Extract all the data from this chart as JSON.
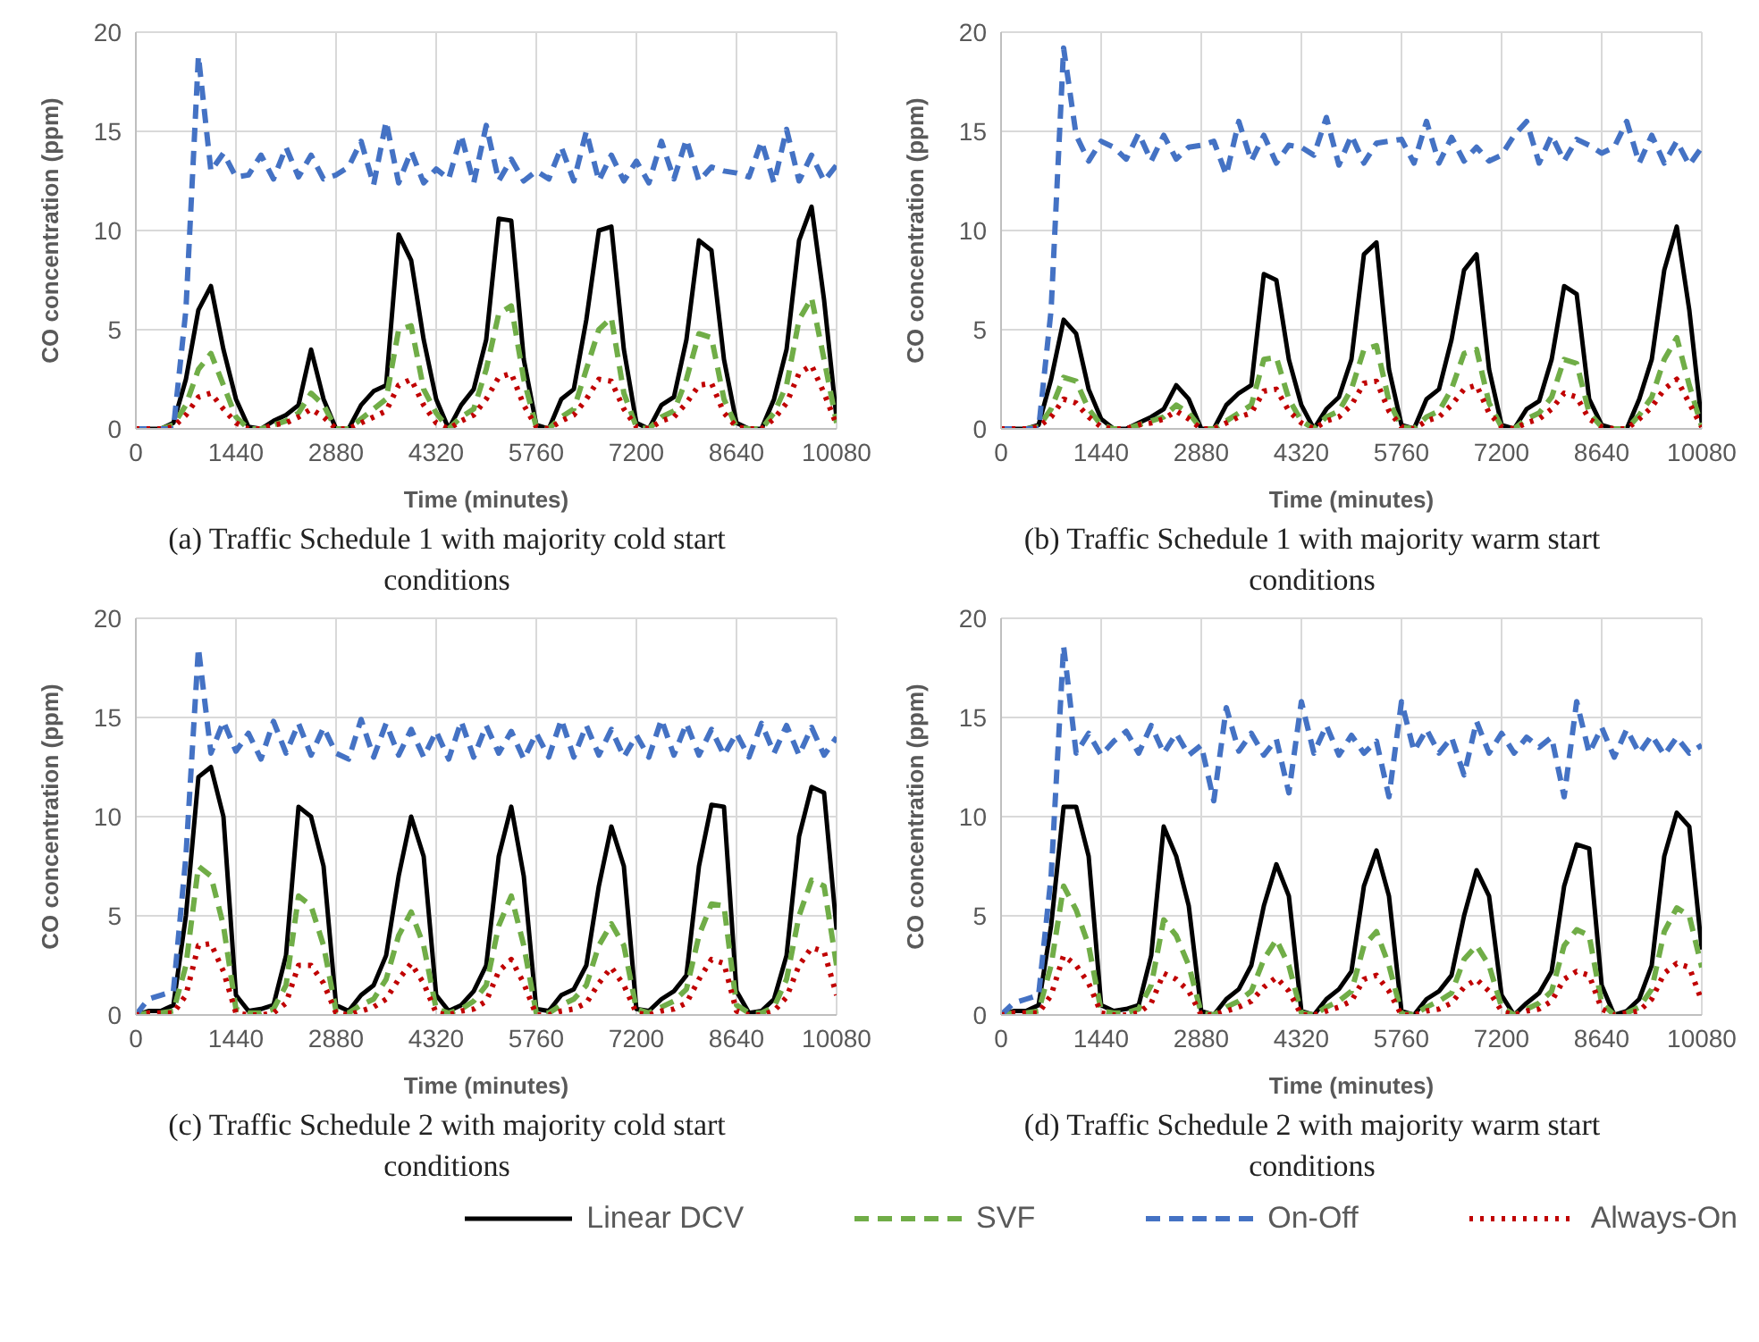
{
  "chart_data": [
    {
      "type": "line",
      "title": "(a) Traffic Schedule 1 with majority cold start conditions",
      "xlabel": "Time (minutes)",
      "ylabel": "CO concentration (ppm)",
      "xlim": [
        0,
        10080
      ],
      "xticks": [
        0,
        1440,
        2880,
        4320,
        5760,
        7200,
        8640,
        10080
      ],
      "ylim": [
        0,
        20
      ],
      "yticks": [
        0,
        5,
        10,
        15,
        20
      ],
      "grid": true,
      "legend": "bottom",
      "x": [
        0,
        180,
        360,
        540,
        720,
        900,
        1080,
        1260,
        1440,
        1620,
        1800,
        1980,
        2160,
        2340,
        2520,
        2700,
        2880,
        3060,
        3240,
        3420,
        3600,
        3780,
        3960,
        4140,
        4320,
        4500,
        4680,
        4860,
        5040,
        5220,
        5400,
        5580,
        5760,
        5940,
        6120,
        6300,
        6480,
        6660,
        6840,
        7020,
        7200,
        7380,
        7560,
        7740,
        7920,
        8100,
        8280,
        8460,
        8640,
        8820,
        9000,
        9180,
        9360,
        9540,
        9720,
        9900,
        10080
      ],
      "series": [
        {
          "name": "Linear DCV",
          "color": "#000000",
          "line_style": "solid",
          "values": [
            0,
            0,
            0,
            0.3,
            2.5,
            6,
            7.2,
            4,
            1.5,
            0.1,
            0,
            0.4,
            0.7,
            1.2,
            4,
            1.5,
            0,
            0,
            1.2,
            1.9,
            2.2,
            9.8,
            8.5,
            4.5,
            1.5,
            0,
            1.2,
            2,
            4.5,
            10.6,
            10.5,
            3.5,
            0.2,
            0,
            1.5,
            2,
            5.5,
            10,
            10.2,
            4,
            0.3,
            0,
            1.2,
            1.6,
            4.5,
            9.5,
            9,
            3.5,
            0.3,
            0,
            0,
            1.5,
            4,
            9.5,
            11.2,
            6.5,
            0.5
          ]
        },
        {
          "name": "SVF",
          "color": "#70ad47",
          "line_style": "dashed",
          "values": [
            0,
            0,
            0,
            0.2,
            1.2,
            3,
            3.8,
            2.2,
            0.6,
            0,
            0,
            0.2,
            0.4,
            0.8,
            1.8,
            1.2,
            0,
            0,
            0.5,
            1,
            1.5,
            5,
            5.2,
            2,
            0.8,
            0,
            0.6,
            1,
            3,
            5.8,
            6.2,
            2.5,
            0.1,
            0,
            0.6,
            1,
            3,
            5,
            5.6,
            1.8,
            0.1,
            0,
            0.6,
            0.9,
            2.5,
            4.8,
            4.6,
            1.5,
            0.1,
            0,
            0,
            0.8,
            2.2,
            5.5,
            6.6,
            3.5,
            0.3
          ]
        },
        {
          "name": "On-Off",
          "color": "#4472c4",
          "line_style": "dashed",
          "values": [
            0,
            0,
            0,
            0,
            6,
            18.8,
            13,
            13.9,
            12.7,
            12.8,
            13.8,
            12.6,
            14.2,
            12.7,
            13.8,
            12.6,
            12.8,
            13.2,
            14.5,
            12.3,
            15.5,
            12.4,
            14,
            12.4,
            13.1,
            12.6,
            14.8,
            12.4,
            15.3,
            12.5,
            13.6,
            12.5,
            13,
            12.6,
            14.2,
            12.5,
            15,
            12.5,
            13.8,
            12.5,
            13.5,
            12.4,
            14.5,
            12.6,
            14.6,
            12.5,
            13.2,
            13,
            12.9,
            12.7,
            14.5,
            12.4,
            15.1,
            12.5,
            13.8,
            12.5,
            13.3
          ]
        },
        {
          "name": "Always-On",
          "color": "#c00000",
          "line_style": "dotted",
          "values": [
            0,
            0,
            0,
            0.1,
            0.7,
            1.6,
            1.8,
            1,
            0.3,
            0,
            0,
            0.2,
            0.3,
            0.6,
            1,
            0.6,
            0,
            0,
            0.3,
            0.6,
            0.9,
            2.2,
            2.5,
            1.2,
            0.3,
            0,
            0.4,
            0.7,
            1.5,
            2.6,
            2.8,
            1.2,
            0.1,
            0,
            0.4,
            0.7,
            1.5,
            2.5,
            2.4,
            1,
            0.1,
            0,
            0.4,
            0.6,
            1.3,
            2.2,
            2.3,
            0.8,
            0.1,
            0,
            0,
            0.5,
            1.3,
            2.8,
            3.2,
            1.8,
            0.2
          ]
        }
      ]
    },
    {
      "type": "line",
      "title": "(b) Traffic Schedule 1 with majority warm start conditions",
      "xlabel": "Time (minutes)",
      "ylabel": "CO concentration (ppm)",
      "xlim": [
        0,
        10080
      ],
      "xticks": [
        0,
        1440,
        2880,
        4320,
        5760,
        7200,
        8640,
        10080
      ],
      "ylim": [
        0,
        20
      ],
      "yticks": [
        0,
        5,
        10,
        15,
        20
      ],
      "grid": true,
      "legend": "bottom",
      "x": [
        0,
        180,
        360,
        540,
        720,
        900,
        1080,
        1260,
        1440,
        1620,
        1800,
        1980,
        2160,
        2340,
        2520,
        2700,
        2880,
        3060,
        3240,
        3420,
        3600,
        3780,
        3960,
        4140,
        4320,
        4500,
        4680,
        4860,
        5040,
        5220,
        5400,
        5580,
        5760,
        5940,
        6120,
        6300,
        6480,
        6660,
        6840,
        7020,
        7200,
        7380,
        7560,
        7740,
        7920,
        8100,
        8280,
        8460,
        8640,
        8820,
        9000,
        9180,
        9360,
        9540,
        9720,
        9900,
        10080
      ],
      "series": [
        {
          "name": "Linear DCV",
          "color": "#000000",
          "line_style": "solid",
          "values": [
            0,
            0,
            0,
            0.2,
            2.5,
            5.5,
            4.8,
            2,
            0.5,
            0,
            0,
            0.3,
            0.6,
            1,
            2.2,
            1.5,
            0,
            0,
            1.2,
            1.8,
            2.2,
            7.8,
            7.5,
            3.5,
            1.2,
            0,
            1,
            1.6,
            3.5,
            8.8,
            9.4,
            3,
            0.2,
            0,
            1.5,
            2,
            4.5,
            8,
            8.8,
            3,
            0.2,
            0,
            1,
            1.4,
            3.5,
            7.2,
            6.8,
            1.5,
            0.2,
            0,
            0,
            1.5,
            3.5,
            8,
            10.2,
            6,
            0.3
          ]
        },
        {
          "name": "SVF",
          "color": "#70ad47",
          "line_style": "dashed",
          "values": [
            0,
            0,
            0,
            0.1,
            1,
            2.6,
            2.4,
            1,
            0.2,
            0,
            0,
            0.2,
            0.4,
            0.6,
            1.2,
            0.8,
            0,
            0,
            0.4,
            0.8,
            1.2,
            3.5,
            3.6,
            1.5,
            0.4,
            0,
            0.6,
            0.9,
            2,
            4,
            4.2,
            1.4,
            0.1,
            0,
            0.6,
            0.9,
            2,
            3.8,
            4,
            1.3,
            0.1,
            0,
            0.5,
            0.8,
            1.6,
            3.5,
            3.3,
            0.8,
            0.1,
            0,
            0,
            0.7,
            1.6,
            3.5,
            4.6,
            2.2,
            0.1
          ]
        },
        {
          "name": "On-Off",
          "color": "#4472c4",
          "line_style": "dashed",
          "values": [
            0,
            0,
            0,
            0,
            6,
            19.2,
            14.8,
            13.5,
            14.5,
            14.2,
            13.6,
            14.9,
            13.5,
            14.8,
            13.6,
            14.2,
            14.3,
            14.5,
            12.8,
            15.5,
            13.5,
            14.8,
            13.4,
            14.3,
            14.2,
            13.8,
            15.7,
            13.3,
            14.8,
            13.4,
            14.4,
            14.5,
            14.6,
            13.4,
            15.5,
            13.4,
            14.7,
            13.5,
            14.2,
            13.5,
            13.8,
            14.8,
            15.5,
            13.4,
            14.8,
            13.5,
            14.6,
            14.3,
            13.9,
            14.2,
            15.5,
            13.4,
            14.8,
            13.4,
            14.5,
            13.3,
            14.2
          ]
        },
        {
          "name": "Always-On",
          "color": "#c00000",
          "line_style": "dotted",
          "values": [
            0,
            0,
            0,
            0.1,
            0.6,
            1.5,
            1.3,
            0.6,
            0.1,
            0,
            0,
            0.2,
            0.3,
            0.5,
            0.9,
            0.5,
            0,
            0,
            0.3,
            0.6,
            0.8,
            1.9,
            2,
            0.9,
            0.3,
            0,
            0.4,
            0.6,
            1.2,
            2.3,
            2.4,
            0.9,
            0.1,
            0,
            0.4,
            0.6,
            1.2,
            2,
            2.2,
            0.8,
            0.1,
            0,
            0.3,
            0.5,
            1,
            1.8,
            1.6,
            0.5,
            0.1,
            0,
            0,
            0.5,
            1.1,
            2,
            2.5,
            1.3,
            0.1
          ]
        }
      ]
    },
    {
      "type": "line",
      "title": "(c) Traffic Schedule 2 with majority cold start conditions",
      "xlabel": "Time (minutes)",
      "ylabel": "CO concentration (ppm)",
      "xlim": [
        0,
        10080
      ],
      "xticks": [
        0,
        1440,
        2880,
        4320,
        5760,
        7200,
        8640,
        10080
      ],
      "ylim": [
        0,
        20
      ],
      "yticks": [
        0,
        5,
        10,
        15,
        20
      ],
      "grid": true,
      "legend": "bottom",
      "x": [
        0,
        180,
        360,
        540,
        720,
        900,
        1080,
        1260,
        1440,
        1620,
        1800,
        1980,
        2160,
        2340,
        2520,
        2700,
        2880,
        3060,
        3240,
        3420,
        3600,
        3780,
        3960,
        4140,
        4320,
        4500,
        4680,
        4860,
        5040,
        5220,
        5400,
        5580,
        5760,
        5940,
        6120,
        6300,
        6480,
        6660,
        6840,
        7020,
        7200,
        7380,
        7560,
        7740,
        7920,
        8100,
        8280,
        8460,
        8640,
        8820,
        9000,
        9180,
        9360,
        9540,
        9720,
        9900,
        10080
      ],
      "series": [
        {
          "name": "Linear DCV",
          "color": "#000000",
          "line_style": "solid",
          "values": [
            0,
            0.2,
            0.2,
            0.5,
            5,
            12,
            12.5,
            10,
            1,
            0.2,
            0.3,
            0.5,
            3,
            10.5,
            10,
            7.5,
            0.5,
            0.2,
            1,
            1.5,
            3,
            7,
            10,
            8,
            1,
            0.2,
            0.5,
            1.2,
            2.5,
            8,
            10.5,
            7,
            0.3,
            0.2,
            1,
            1.3,
            2.5,
            6.5,
            9.5,
            7.5,
            0.3,
            0.2,
            0.8,
            1.2,
            2,
            7.5,
            10.6,
            10.5,
            1.2,
            0.1,
            0.2,
            0.8,
            3,
            9,
            11.5,
            11.2,
            4.3
          ]
        },
        {
          "name": "SVF",
          "color": "#70ad47",
          "line_style": "dashed",
          "values": [
            0,
            0.1,
            0.1,
            0.2,
            2.5,
            7.5,
            7,
            4.5,
            0.3,
            0.1,
            0.1,
            0.3,
            1.5,
            6,
            5.5,
            3.5,
            0.2,
            0.1,
            0.5,
            0.8,
            1.8,
            4,
            5.2,
            3.5,
            0.3,
            0.1,
            0.3,
            0.7,
            1.5,
            4.5,
            6,
            3.5,
            0.1,
            0.1,
            0.5,
            0.8,
            1.5,
            3.5,
            4.6,
            3.5,
            0.3,
            0.1,
            0.4,
            0.7,
            1.3,
            4,
            5.6,
            5.5,
            0.5,
            0.1,
            0.1,
            0.4,
            1.8,
            5,
            6.8,
            6.5,
            2.5
          ]
        },
        {
          "name": "On-Off",
          "color": "#4472c4",
          "line_style": "dashed",
          "values": [
            0,
            0.8,
            1,
            1.2,
            8,
            18.5,
            13.2,
            14.8,
            13.3,
            14.2,
            12.9,
            14.8,
            13.2,
            14.7,
            13.1,
            14.5,
            13.2,
            12.9,
            14.9,
            13,
            14.7,
            13.1,
            14.4,
            13,
            14.3,
            12.9,
            14.8,
            13,
            14.6,
            13.2,
            14.3,
            12.9,
            14.2,
            13,
            14.9,
            13,
            14.6,
            13.1,
            14.4,
            13,
            14.1,
            13,
            14.9,
            13.1,
            14.7,
            13.1,
            14.4,
            13.1,
            14.2,
            13,
            14.7,
            13.2,
            14.6,
            13.1,
            14.5,
            13.1,
            14
          ]
        },
        {
          "name": "Always-On",
          "color": "#c00000",
          "line_style": "dotted",
          "values": [
            0,
            0.1,
            0.1,
            0.1,
            1,
            3.5,
            3.6,
            2.2,
            0.1,
            0,
            0,
            0.1,
            0.6,
            2.5,
            2.5,
            1.6,
            0.1,
            0,
            0.2,
            0.4,
            0.8,
            1.8,
            2.6,
            1.6,
            0.1,
            0,
            0.2,
            0.3,
            0.7,
            2.2,
            2.8,
            1.6,
            0,
            0,
            0.2,
            0.3,
            0.6,
            1.6,
            2.4,
            1.5,
            0.1,
            0,
            0.2,
            0.3,
            0.6,
            1.8,
            2.8,
            2.6,
            0.2,
            0,
            0,
            0.2,
            0.9,
            2.5,
            3.4,
            3.2,
            1
          ]
        }
      ]
    },
    {
      "type": "line",
      "title": "(d) Traffic Schedule 2 with majority warm start conditions",
      "xlabel": "Time (minutes)",
      "ylabel": "CO concentration (ppm)",
      "xlim": [
        0,
        10080
      ],
      "xticks": [
        0,
        1440,
        2880,
        4320,
        5760,
        7200,
        8640,
        10080
      ],
      "ylim": [
        0,
        20
      ],
      "yticks": [
        0,
        5,
        10,
        15,
        20
      ],
      "grid": true,
      "legend": "bottom",
      "x": [
        0,
        180,
        360,
        540,
        720,
        900,
        1080,
        1260,
        1440,
        1620,
        1800,
        1980,
        2160,
        2340,
        2520,
        2700,
        2880,
        3060,
        3240,
        3420,
        3600,
        3780,
        3960,
        4140,
        4320,
        4500,
        4680,
        4860,
        5040,
        5220,
        5400,
        5580,
        5760,
        5940,
        6120,
        6300,
        6480,
        6660,
        6840,
        7020,
        7200,
        7380,
        7560,
        7740,
        7920,
        8100,
        8280,
        8460,
        8640,
        8820,
        9000,
        9180,
        9360,
        9540,
        9720,
        9900,
        10080
      ],
      "series": [
        {
          "name": "Linear DCV",
          "color": "#000000",
          "line_style": "solid",
          "values": [
            0,
            0.2,
            0.2,
            0.5,
            4.5,
            10.5,
            10.5,
            8,
            0.5,
            0.2,
            0.3,
            0.5,
            3,
            9.5,
            8,
            5.5,
            0.2,
            0,
            0.8,
            1.3,
            2.5,
            5.5,
            7.6,
            6,
            0.2,
            0,
            0.8,
            1.3,
            2.2,
            6.5,
            8.3,
            6,
            0.2,
            0,
            0.8,
            1.2,
            2,
            5,
            7.3,
            6,
            1,
            0,
            0.6,
            1.1,
            2.2,
            6.5,
            8.6,
            8.4,
            1.5,
            0,
            0.2,
            0.8,
            2.5,
            8,
            10.2,
            9.5,
            3.3
          ]
        },
        {
          "name": "SVF",
          "color": "#70ad47",
          "line_style": "dashed",
          "values": [
            0,
            0.1,
            0.1,
            0.2,
            2.5,
            6.5,
            5.3,
            3.5,
            0.2,
            0.1,
            0.1,
            0.3,
            1.5,
            4.8,
            4,
            2.5,
            0.1,
            0,
            0.4,
            0.7,
            1.2,
            2.8,
            3.8,
            2.5,
            0.1,
            0,
            0.4,
            0.7,
            1.2,
            3.5,
            4.2,
            2.5,
            0.1,
            0,
            0.4,
            0.7,
            1.1,
            2.8,
            3.5,
            2.5,
            0.4,
            0,
            0.3,
            0.6,
            1.2,
            3.5,
            4.3,
            4,
            0.6,
            0,
            0.1,
            0.4,
            1.3,
            4.2,
            5.4,
            5,
            2.4
          ]
        },
        {
          "name": "On-Off",
          "color": "#4472c4",
          "line_style": "dashed",
          "values": [
            0,
            0.6,
            0.8,
            1,
            7,
            18.6,
            13.2,
            14.2,
            13.1,
            13.8,
            14.3,
            13.2,
            14.6,
            13.2,
            14.2,
            13.1,
            13.6,
            10.8,
            15.5,
            13.3,
            14.2,
            13.1,
            13.9,
            11.2,
            15.8,
            13.2,
            14.6,
            13.1,
            14.1,
            13.2,
            13.8,
            11,
            15.8,
            13.3,
            14.4,
            13.2,
            14,
            12.1,
            14.8,
            13.2,
            14.2,
            13.2,
            14,
            13.5,
            14,
            11,
            15.8,
            13.2,
            14.5,
            13,
            14.4,
            13.2,
            14.1,
            13.1,
            14,
            13.2,
            13.6
          ]
        },
        {
          "name": "Always-On",
          "color": "#c00000",
          "line_style": "dotted",
          "values": [
            0,
            0.1,
            0.1,
            0.1,
            1,
            3,
            2.5,
            1.6,
            0.1,
            0,
            0,
            0.1,
            0.6,
            2.1,
            1.8,
            1.2,
            0,
            0,
            0.2,
            0.4,
            0.7,
            1.4,
            1.9,
            1.2,
            0,
            0,
            0.2,
            0.4,
            0.7,
            1.8,
            2,
            1.2,
            0,
            0,
            0.2,
            0.3,
            0.6,
            1.4,
            1.8,
            1.2,
            0.2,
            0,
            0.2,
            0.3,
            0.7,
            1.8,
            2.2,
            2,
            0.3,
            0,
            0.1,
            0.2,
            0.8,
            2.1,
            2.6,
            2.4,
            0.7
          ]
        }
      ]
    }
  ]
}
